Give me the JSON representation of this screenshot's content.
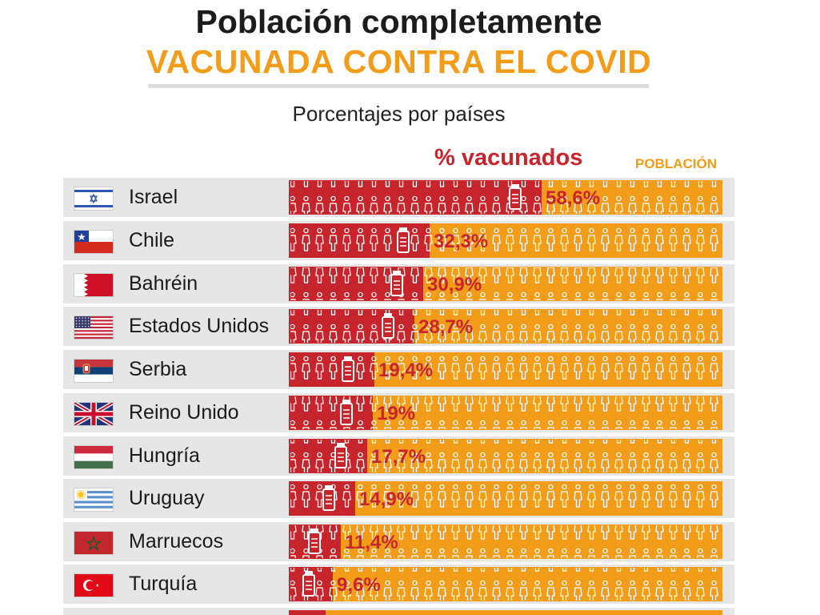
{
  "title": {
    "line1": "Población completamente",
    "line2": "VACUNADA CONTRA EL COVID"
  },
  "subtitle": "Porcentajes por países",
  "legend": {
    "vaccinated": "% vacunados",
    "population": "POBLACIÓN"
  },
  "colors": {
    "vaccinated": "#c8242b",
    "population": "#f39c1a",
    "label": "#c8242b",
    "row_bg": "#e6e6e6"
  },
  "chart_data": {
    "type": "bar",
    "orientation": "horizontal",
    "title": "Población completamente VACUNADA CONTRA EL COVID",
    "subtitle": "Porcentajes por países",
    "categories": [
      "Israel",
      "Chile",
      "Bahréin",
      "Estados Unidos",
      "Serbia",
      "Reino Unido",
      "Hungría",
      "Uruguay",
      "Marruecos",
      "Turquía"
    ],
    "values": [
      58.6,
      32.3,
      30.9,
      28.7,
      19.4,
      19,
      17.7,
      14.9,
      11.4,
      9.6
    ],
    "value_labels": [
      "58,6%",
      "32,3%",
      "30,9%",
      "28,7%",
      "19,4%",
      "19%",
      "17,7%",
      "14,9%",
      "11,4%",
      "9,6%"
    ],
    "xlim": [
      0,
      100
    ],
    "series": [
      {
        "name": "% vacunados",
        "values": [
          58.6,
          32.3,
          30.9,
          28.7,
          19.4,
          19,
          17.7,
          14.9,
          11.4,
          9.6
        ]
      }
    ],
    "legend": [
      "% vacunados",
      "POBLACIÓN"
    ],
    "grid": false
  },
  "flags": [
    "israel-flag-icon",
    "chile-flag-icon",
    "bahrain-flag-icon",
    "usa-flag-icon",
    "serbia-flag-icon",
    "uk-flag-icon",
    "hungary-flag-icon",
    "uruguay-flag-icon",
    "morocco-flag-icon",
    "turkey-flag-icon"
  ]
}
